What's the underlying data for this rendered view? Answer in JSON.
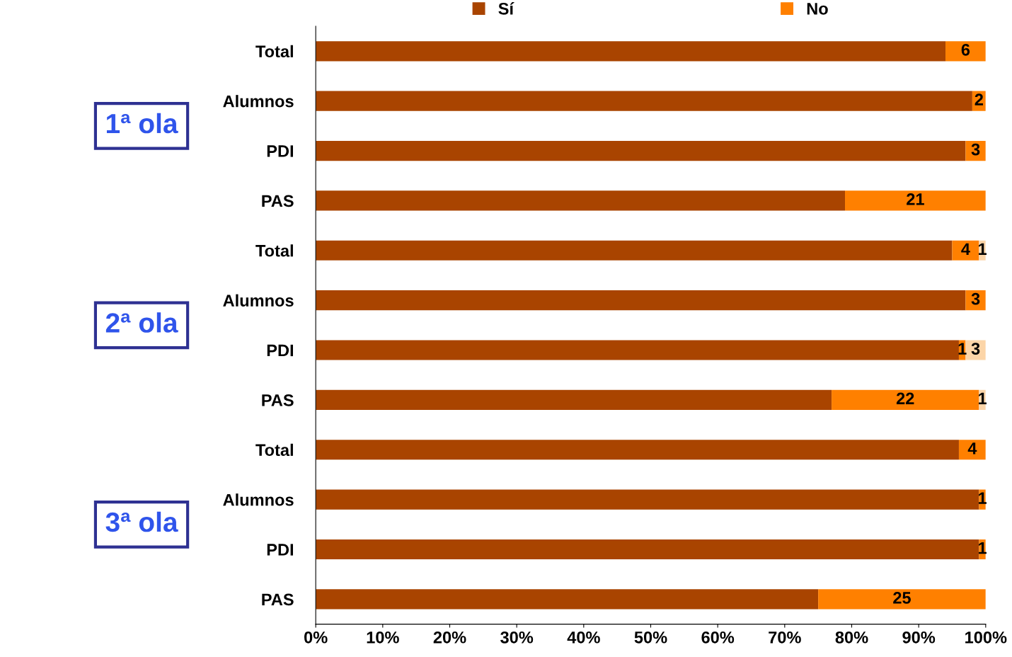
{
  "chart_data": {
    "type": "bar",
    "orientation": "horizontal",
    "stacked": true,
    "categories": [
      "Total",
      "Alumnos",
      "PDI",
      "PAS",
      "Total",
      "Alumnos",
      "PDI",
      "PAS",
      "Total",
      "Alumnos",
      "PDI",
      "PAS"
    ],
    "series": [
      {
        "name": "Sí",
        "color": "#a94400",
        "values": [
          94,
          98,
          97,
          79,
          95,
          97,
          96,
          77,
          96,
          99,
          99,
          75
        ]
      },
      {
        "name": "No",
        "color": "#ff8000",
        "values": [
          6,
          2,
          3,
          21,
          4,
          3,
          1,
          22,
          4,
          1,
          1,
          25
        ],
        "value_labels": [
          "6",
          "2",
          "3",
          "21",
          "4",
          "3",
          "1",
          "22",
          "4",
          "1",
          "1",
          "25"
        ]
      },
      {
        "color": "#fcd5a8",
        "values": [
          0,
          0,
          0,
          0,
          1,
          0,
          3,
          1,
          0,
          0,
          0,
          0
        ],
        "value_labels": [
          null,
          null,
          null,
          null,
          "1",
          null,
          "3",
          "1",
          null,
          null,
          null,
          null
        ]
      }
    ],
    "xlim": [
      0,
      100
    ],
    "xticks": [
      {
        "value": 0,
        "label": "0%"
      },
      {
        "value": 10,
        "label": "10%"
      },
      {
        "value": 20,
        "label": "20%"
      },
      {
        "value": 30,
        "label": "30%"
      },
      {
        "value": 40,
        "label": "40%"
      },
      {
        "value": 50,
        "label": "50%"
      },
      {
        "value": 60,
        "label": "60%"
      },
      {
        "value": 70,
        "label": "70%"
      },
      {
        "value": 80,
        "label": "80%"
      },
      {
        "value": 90,
        "label": "90%"
      },
      {
        "value": 100,
        "label": "100%"
      }
    ],
    "annotations": [
      "1ª ola",
      "2ª ola",
      "3ª ola"
    ],
    "legend": "top",
    "grid": false
  }
}
